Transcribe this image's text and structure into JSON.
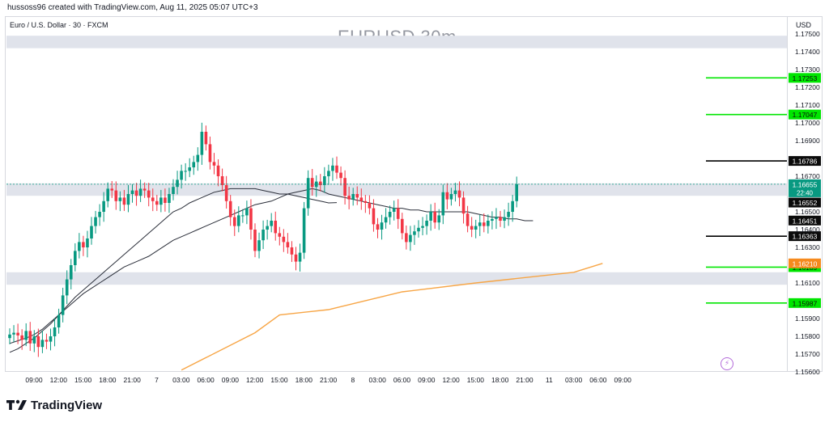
{
  "header": {
    "credit": "hussoss96 created with TradingView.com, Aug 11, 2025 05:07 UTC+3",
    "symbol": "Euro / U.S. Dollar · 30 · FXCM",
    "watermark": "EURUSD 30m",
    "currency": "USD"
  },
  "brand": {
    "name": "TradingView",
    "logo_icon": "tradingview-logo-icon"
  },
  "icons": {
    "alert": "lightning-icon"
  },
  "colors": {
    "bull": "#089981",
    "bear": "#f23645",
    "zone": "#e0e3eb",
    "support_line": "#00e600",
    "level_line": "#000000",
    "orange_ma": "#f7a545",
    "price_tag": "#0b0b0b",
    "orange_tag": "#f68a1e"
  },
  "chart_data": {
    "type": "candlestick",
    "title": "EURUSD 30m",
    "ylim": [
      1.156,
      1.176
    ],
    "y_ticks": [
      "1.17500",
      "1.17400",
      "1.17300",
      "1.17200",
      "1.17100",
      "1.17000",
      "1.16900",
      "1.16700",
      "1.16500",
      "1.16400",
      "1.16300",
      "1.16100",
      "1.15900",
      "1.15800",
      "1.15700",
      "1.15600"
    ],
    "x_labels": [
      "09:00",
      "12:00",
      "15:00",
      "18:00",
      "21:00",
      "7",
      "03:00",
      "06:00",
      "09:00",
      "12:00",
      "15:00",
      "18:00",
      "21:00",
      "8",
      "03:00",
      "06:00",
      "09:00",
      "12:00",
      "15:00",
      "18:00",
      "21:00",
      "11",
      "03:00",
      "06:00",
      "09:00"
    ],
    "x_label_bars": [
      0,
      6,
      12,
      18,
      24,
      30,
      36,
      42,
      48,
      54,
      60,
      66,
      72,
      78,
      84,
      90,
      96,
      102,
      108,
      114,
      120,
      126,
      132,
      138,
      144
    ],
    "zones": [
      {
        "from": 1.1742,
        "to": 1.1749
      },
      {
        "from": 1.1659,
        "to": 1.1666
      },
      {
        "from": 1.1609,
        "to": 1.1616
      }
    ],
    "levels": [
      {
        "price": 1.17253,
        "label": "1.17253",
        "style": "green"
      },
      {
        "price": 1.17047,
        "label": "1.17047",
        "style": "green"
      },
      {
        "price": 1.16786,
        "label": "1.16786",
        "style": "black"
      },
      {
        "price": 1.16363,
        "label": "1.16363",
        "style": "black"
      },
      {
        "price": 1.16189,
        "label": "1.16189",
        "style": "green"
      },
      {
        "price": 1.15987,
        "label": "1.15987",
        "style": "green"
      }
    ],
    "price_tags": [
      {
        "price": 1.16655,
        "label": "1.16655",
        "sub": "22:40",
        "style": "current"
      },
      {
        "price": 1.16552,
        "label": "1.16552",
        "style": "dark"
      },
      {
        "price": 1.16451,
        "label": "1.16451",
        "style": "dark"
      },
      {
        "price": 1.1621,
        "label": "1.16210",
        "style": "orange"
      }
    ],
    "close": [
      1.1581,
      1.1582,
      1.15805,
      1.1578,
      1.1583,
      1.1576,
      1.158,
      1.1574,
      1.1578,
      1.1577,
      1.158,
      1.1585,
      1.1592,
      1.1603,
      1.1612,
      1.162,
      1.1628,
      1.1633,
      1.163,
      1.1635,
      1.1642,
      1.1647,
      1.165,
      1.1656,
      1.1663,
      1.1662,
      1.1656,
      1.1658,
      1.1654,
      1.166,
      1.1662,
      1.1659,
      1.1663,
      1.1662,
      1.1658,
      1.1656,
      1.1654,
      1.1658,
      1.1655,
      1.166,
      1.1664,
      1.1668,
      1.1673,
      1.1673,
      1.1675,
      1.1678,
      1.1682,
      1.1695,
      1.1688,
      1.1678,
      1.1676,
      1.167,
      1.1665,
      1.1656,
      1.1647,
      1.1642,
      1.1648,
      1.1648,
      1.1652,
      1.164,
      1.1628,
      1.1634,
      1.164,
      1.1642,
      1.1645,
      1.1638,
      1.1636,
      1.1633,
      1.163,
      1.1626,
      1.1622,
      1.1627,
      1.1652,
      1.1669,
      1.1664,
      1.1667,
      1.1665,
      1.167,
      1.1673,
      1.1676,
      1.1672,
      1.1669,
      1.1659,
      1.1657,
      1.166,
      1.1658,
      1.1656,
      1.1655,
      1.1652,
      1.1643,
      1.164,
      1.1644,
      1.1647,
      1.165,
      1.1652,
      1.1646,
      1.1638,
      1.1633,
      1.1637,
      1.1639,
      1.1641,
      1.1642,
      1.1645,
      1.165,
      1.1644,
      1.1648,
      1.1661,
      1.1657,
      1.166,
      1.1662,
      1.1658,
      1.1649,
      1.1642,
      1.164,
      1.1642,
      1.1644,
      1.1642,
      1.1645,
      1.1646,
      1.1647,
      1.1645,
      1.1647,
      1.165,
      1.1656,
      1.16655
    ],
    "ma_fast": [
      1.1576,
      1.15775,
      1.1579,
      1.1581,
      1.1584,
      1.1588,
      1.1592,
      1.1596,
      1.16,
      1.1604,
      1.1607,
      1.161,
      1.1613,
      1.1616,
      1.1619,
      1.1621,
      1.1623,
      1.1625,
      1.1628,
      1.1631,
      1.1634,
      1.1636,
      1.1638,
      1.164,
      1.1642,
      1.1644,
      1.1646,
      1.1648,
      1.165,
      1.1652,
      1.1654,
      1.1655,
      1.1656,
      1.1658,
      1.166,
      1.1661,
      1.1662,
      1.1663,
      1.1662,
      1.166,
      1.1659,
      1.1658,
      1.1657,
      1.1656,
      1.1655,
      1.1654,
      1.1653,
      1.1652,
      1.1652,
      1.1651,
      1.1651,
      1.165,
      1.165,
      1.165,
      1.165,
      1.165,
      1.165,
      1.1649,
      1.1648,
      1.1647,
      1.1647,
      1.1646,
      1.1646,
      1.1645,
      1.1645
    ],
    "ma_mid": [
      1.1571,
      1.1573,
      1.1576,
      1.1579,
      1.1583,
      1.1587,
      1.1592,
      1.1597,
      1.1602,
      1.1606,
      1.161,
      1.1614,
      1.1618,
      1.1622,
      1.1626,
      1.163,
      1.1634,
      1.1638,
      1.1642,
      1.1646,
      1.165,
      1.1652,
      1.1655,
      1.1657,
      1.1659,
      1.1661,
      1.1662,
      1.1663,
      1.1663,
      1.1663,
      1.1663,
      1.1662,
      1.1661,
      1.166,
      1.166,
      1.1659,
      1.1658,
      1.1657,
      1.1656,
      1.1655,
      1.16552
    ],
    "ma_slow_x": [
      42,
      60,
      66,
      78,
      96,
      114,
      138,
      145
    ],
    "ma_slow": [
      1.1561,
      1.1582,
      1.1592,
      1.1595,
      1.1605,
      1.161,
      1.1616,
      1.1621
    ]
  }
}
